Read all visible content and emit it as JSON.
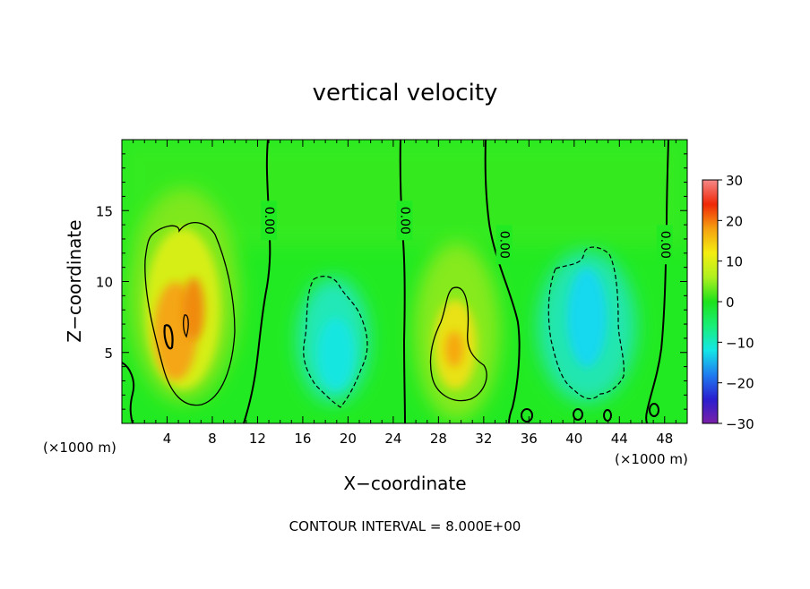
{
  "chart_data": {
    "type": "heatmap",
    "title": "vertical velocity",
    "xlabel": "X−coordinate",
    "ylabel": "Z−coordinate",
    "x_unit_left": "(×1000 m)",
    "x_unit_right": "(×1000 m)",
    "xlim": [
      0,
      50
    ],
    "ylim": [
      0,
      20
    ],
    "x_ticks": [
      4,
      8,
      12,
      16,
      20,
      24,
      28,
      32,
      36,
      40,
      44,
      48
    ],
    "x_tick_labels": [
      "4",
      "8",
      "12",
      "16",
      "20",
      "24",
      "28",
      "32",
      "36",
      "40",
      "44",
      "48"
    ],
    "y_ticks": [
      5,
      10,
      15
    ],
    "y_tick_labels": [
      "5",
      "10",
      "15"
    ],
    "colorbar": {
      "range": [
        -30,
        30
      ],
      "ticks": [
        30,
        20,
        10,
        0,
        -10,
        -20,
        -30
      ],
      "tick_labels": [
        "30",
        "20",
        "10",
        "0",
        "−10",
        "−20",
        "−30"
      ],
      "colors": [
        "#7a1fa8",
        "#2a1fd0",
        "#1f7df0",
        "#14e6e6",
        "#18ee78",
        "#1de21d",
        "#aef020",
        "#f4ee10",
        "#f5a010",
        "#f02808",
        "#f48888"
      ]
    },
    "contour_interval": "CONTOUR INTERVAL = 8.000E+00",
    "contour_labels": [
      {
        "text": "0.00",
        "x": 13.0,
        "z": 14.3
      },
      {
        "text": "0.00",
        "x": 25.0,
        "z": 14.3
      },
      {
        "text": "0.00",
        "x": 33.8,
        "z": 12.6
      },
      {
        "text": "0.00",
        "x": 48.0,
        "z": 12.6
      }
    ],
    "features": [
      {
        "kind": "updraft",
        "x": 5.5,
        "z": 6.5,
        "peak": 20
      },
      {
        "kind": "downdraft",
        "x": 19.0,
        "z": 5.5,
        "peak": -8
      },
      {
        "kind": "updraft",
        "x": 29.5,
        "z": 5.5,
        "peak": 16
      },
      {
        "kind": "downdraft",
        "x": 41.5,
        "z": 6.5,
        "peak": -10
      }
    ]
  }
}
